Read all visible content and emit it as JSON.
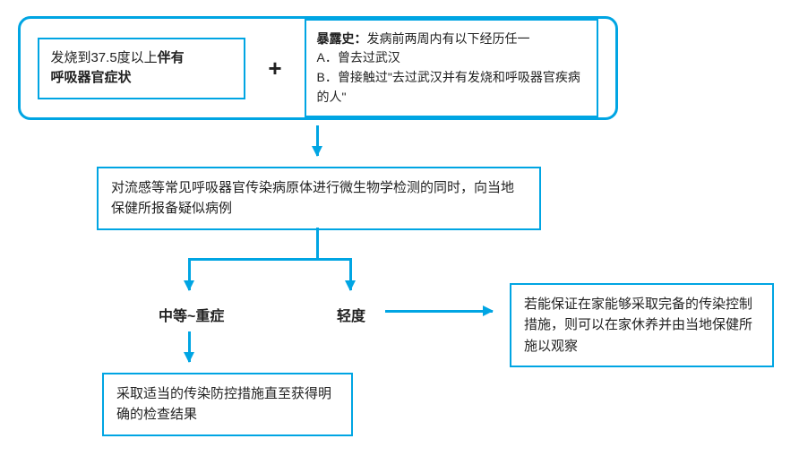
{
  "colors": {
    "accent": "#00a5e3",
    "text": "#222222",
    "bg": "#ffffff"
  },
  "top": {
    "boxA": {
      "line1_pre": "发烧到37.5度以上",
      "line1_bold": "伴有",
      "line2_bold": "呼吸器官症状"
    },
    "plus": "+",
    "boxB": {
      "title_bold": "暴露史：",
      "title_rest": "发病前两周内有以下经历任一",
      "itemA": "A．曾去过武汉",
      "itemB": "B．曾接触过\"去过武汉并有发烧和呼吸器官疾病的人\""
    }
  },
  "box2": "对流感等常见呼吸器官传染病原体进行微生物学检测的同时，向当地保健所报备疑似病例",
  "branch": {
    "moderate_severe": "中等~重症",
    "mild": "轻度"
  },
  "box3": "若能保证在家能够采取完备的传染控制措施，则可以在家休养并由当地保健所施以观察",
  "box4": "采取适当的传染防控措施直至获得明确的检查结果",
  "flow": {
    "type": "flowchart",
    "border_color": "#00a5e3",
    "border_width": 2,
    "container_border_width": 3,
    "container_radius": 14,
    "arrow_color": "#00a5e3",
    "arrow_width": 3,
    "font_size_body": 15,
    "font_size_label": 16,
    "font_size_plus": 26
  }
}
